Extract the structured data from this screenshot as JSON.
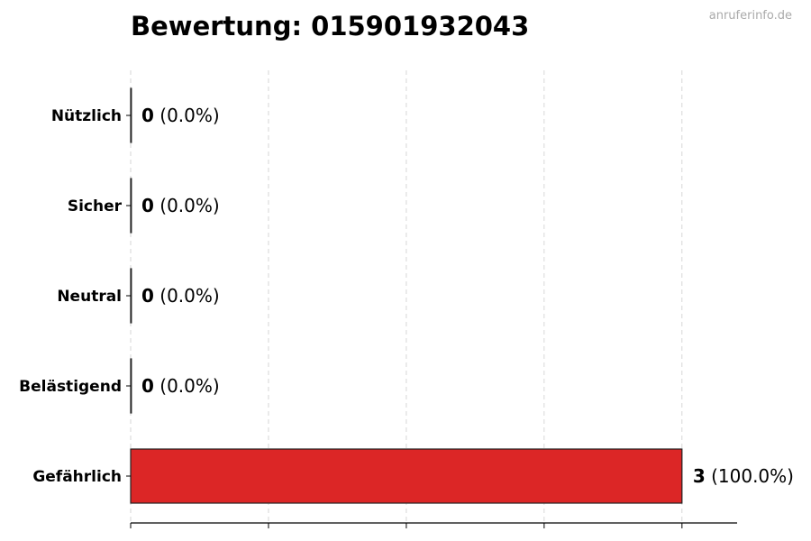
{
  "title": "Bewertung: 015901932043",
  "watermark": "anruferinfo.de",
  "chart_data": {
    "type": "bar",
    "orientation": "horizontal",
    "title": "Bewertung: 015901932043",
    "categories": [
      "Nützlich",
      "Sicher",
      "Neutral",
      "Belästigend",
      "Gefährlich"
    ],
    "values": [
      0,
      0,
      0,
      0,
      3
    ],
    "labels": [
      {
        "count": "0",
        "pct": "(0.0%)"
      },
      {
        "count": "0",
        "pct": "(0.0%)"
      },
      {
        "count": "0",
        "pct": "(0.0%)"
      },
      {
        "count": "0",
        "pct": "(0.0%)"
      },
      {
        "count": "3",
        "pct": "(100.0%)"
      }
    ],
    "colors": [
      "#22c55e",
      "#3b82f6",
      "#9ca3af",
      "#f59e0b",
      "#dc2626"
    ],
    "xlim": [
      0,
      3.3
    ],
    "xticks": [
      0,
      0.75,
      1.5,
      2.25,
      3
    ],
    "xtick_labels_shown": false,
    "grid": "x dashed",
    "xlabel": "",
    "ylabel": ""
  }
}
